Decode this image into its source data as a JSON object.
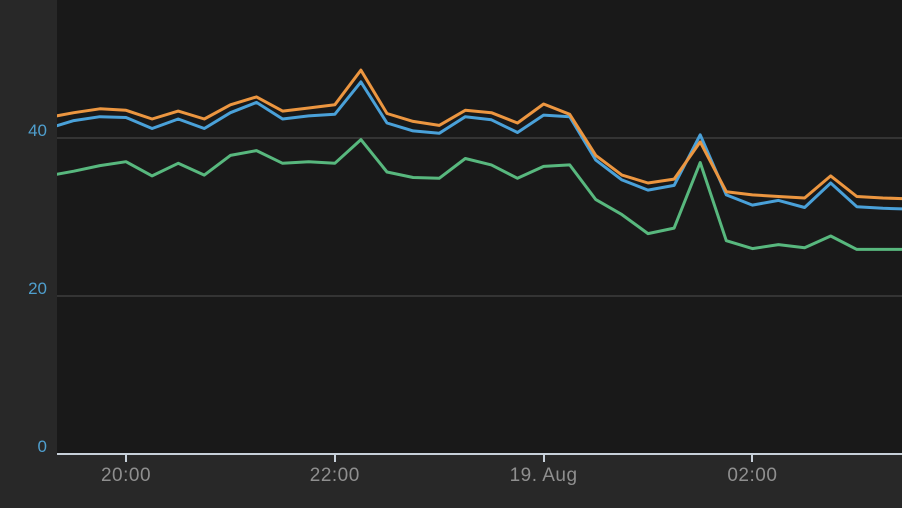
{
  "chart_data": {
    "type": "line",
    "title": "",
    "xlabel": "",
    "ylabel": "",
    "legend": "none",
    "grid": "horizontal",
    "ylim": [
      0,
      57.5
    ],
    "x": [
      "19:15",
      "19:30",
      "19:45",
      "20:00",
      "20:15",
      "20:30",
      "20:45",
      "21:00",
      "21:15",
      "21:30",
      "21:45",
      "22:00",
      "22:15",
      "22:30",
      "22:45",
      "23:00",
      "23:15",
      "23:30",
      "23:45",
      "00:00",
      "00:15",
      "00:30",
      "00:45",
      "01:00",
      "01:15",
      "01:30",
      "01:45",
      "02:00",
      "02:15",
      "02:30",
      "02:45",
      "03:00",
      "03:15",
      "03:30"
    ],
    "series": [
      {
        "name": "blue-series",
        "color": "#4aa1d9",
        "values": [
          41.2,
          42.2,
          42.7,
          42.6,
          41.2,
          42.4,
          41.2,
          43.2,
          44.5,
          42.4,
          42.8,
          43.0,
          47.1,
          41.9,
          40.9,
          40.6,
          42.7,
          42.3,
          40.7,
          42.9,
          42.7,
          37.2,
          34.7,
          33.4,
          34.0,
          40.4,
          32.8,
          31.5,
          32.1,
          31.2,
          34.3,
          31.3,
          31.1,
          31.0
        ]
      },
      {
        "name": "green-series",
        "color": "#58b87e",
        "values": [
          35.2,
          35.8,
          36.5,
          37.0,
          35.2,
          36.8,
          35.3,
          37.8,
          38.4,
          36.8,
          37.0,
          36.8,
          39.8,
          35.7,
          35.0,
          34.9,
          37.4,
          36.6,
          34.9,
          36.4,
          36.6,
          32.2,
          30.3,
          27.9,
          28.6,
          36.9,
          27.0,
          26.0,
          26.5,
          26.1,
          27.6,
          25.9,
          25.9,
          25.9
        ]
      },
      {
        "name": "orange-series",
        "color": "#ec9640",
        "values": [
          42.6,
          43.2,
          43.7,
          43.5,
          42.4,
          43.4,
          42.4,
          44.2,
          45.2,
          43.4,
          43.8,
          44.2,
          48.6,
          43.1,
          42.1,
          41.6,
          43.5,
          43.2,
          41.9,
          44.3,
          43.0,
          37.8,
          35.3,
          34.3,
          34.8,
          39.5,
          33.2,
          32.8,
          32.6,
          32.4,
          35.2,
          32.6,
          32.4,
          32.3
        ]
      }
    ],
    "x_ticks": [
      {
        "index": 3,
        "label": "20:00"
      },
      {
        "index": 11,
        "label": "22:00"
      },
      {
        "index": 19,
        "label": "19. Aug"
      },
      {
        "index": 27,
        "label": "02:00"
      }
    ],
    "y_ticks": [
      {
        "value": 40,
        "label": "40",
        "gridline": true
      },
      {
        "value": 20,
        "label": "20",
        "gridline": true
      },
      {
        "value": 0,
        "label": "0",
        "gridline": false
      }
    ]
  },
  "colors": {
    "page_bg": "#282828",
    "plot_bg": "#191919",
    "gridline": "#3e3e3e",
    "axis_line": "#c7d0d9",
    "x_label": "#8f8f8f",
    "y_label": "#4f9fce"
  }
}
